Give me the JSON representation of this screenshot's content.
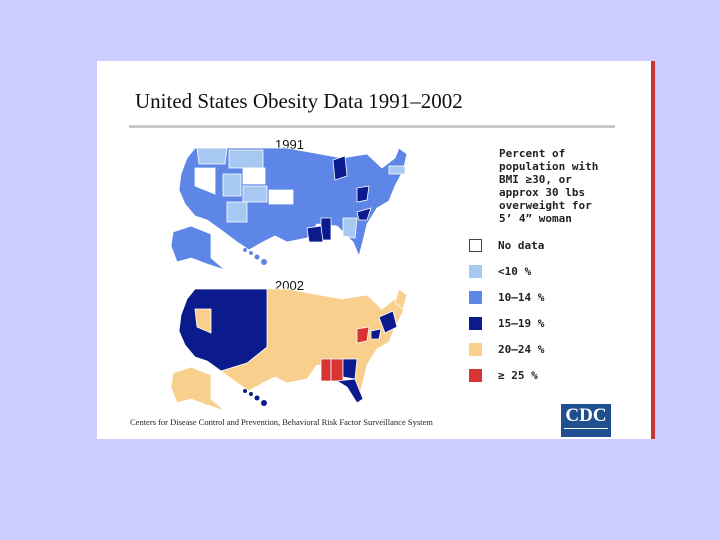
{
  "title": "United States Obesity Data 1991–2002",
  "maps": [
    {
      "year": "1991"
    },
    {
      "year": "2002"
    }
  ],
  "legend": {
    "description": "Percent of\npopulation with\nBMI ≥30, or\napprox 30 lbs\noverweight for\n5’ 4” woman",
    "items": [
      {
        "label": "No data",
        "color": "#ffffff"
      },
      {
        "label": "<10 %",
        "color": "#a7c9f1"
      },
      {
        "label": "10–14 %",
        "color": "#5d86e6"
      },
      {
        "label": "15–19 %",
        "color": "#0b1a8c"
      },
      {
        "label": "20–24 %",
        "color": "#f8cf8c"
      },
      {
        "label": "≥ 25 %",
        "color": "#d83434"
      }
    ]
  },
  "source": "Centers for Disease Control and Prevention, Behavioral Risk Factor Surveillance System",
  "logo_text": "CDC",
  "colors": {
    "background": "#ccccff",
    "accent_border": "#cc3333",
    "logo": "#1f4f8f"
  }
}
